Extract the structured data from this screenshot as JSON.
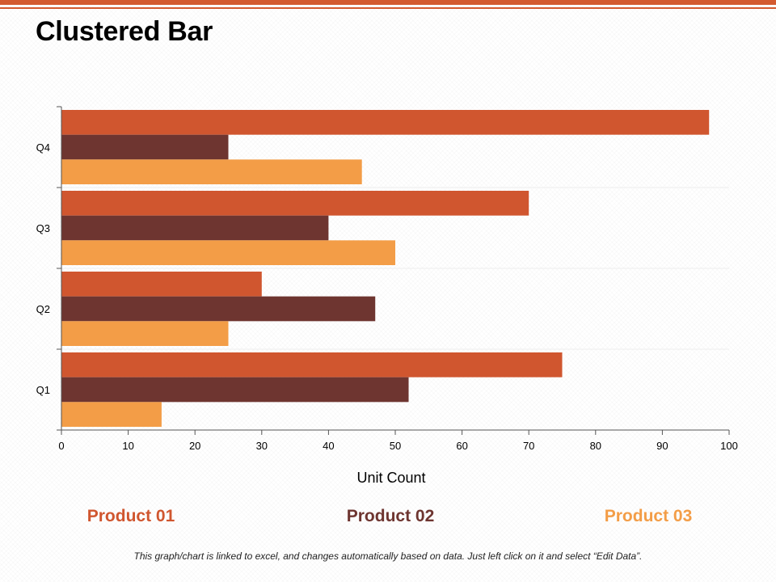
{
  "page": {
    "title": "Clustered Bar",
    "footnote": "This graph/chart is linked to excel, and changes automatically based on data. Just left click on it and select “Edit Data”."
  },
  "colors": {
    "accent": "#d35a2f",
    "product_01": "#d0562f",
    "product_02": "#6e3530",
    "product_03": "#f39d47"
  },
  "legend": [
    {
      "label": "Product 01",
      "color": "#d0562f"
    },
    {
      "label": "Product 02",
      "color": "#6e3530"
    },
    {
      "label": "Product 03",
      "color": "#f39d47"
    }
  ],
  "chart_data": {
    "type": "bar",
    "orientation": "horizontal",
    "title": "",
    "xlabel": "Unit Count",
    "ylabel": "",
    "xlim": [
      0,
      100
    ],
    "xticks": [
      0,
      10,
      20,
      30,
      40,
      50,
      60,
      70,
      80,
      90,
      100
    ],
    "grid": false,
    "categories": [
      "Q1",
      "Q2",
      "Q3",
      "Q4"
    ],
    "series": [
      {
        "name": "Product 01",
        "color": "#d0562f",
        "values": [
          75,
          30,
          70,
          97
        ]
      },
      {
        "name": "Product 02",
        "color": "#6e3530",
        "values": [
          52,
          47,
          40,
          25
        ]
      },
      {
        "name": "Product 03",
        "color": "#f39d47",
        "values": [
          15,
          25,
          50,
          45
        ]
      }
    ],
    "legend_position": "bottom"
  }
}
